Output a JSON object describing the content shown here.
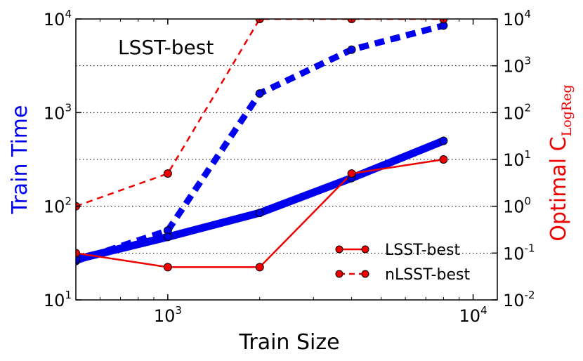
{
  "chart_data": {
    "type": "line",
    "annotation": "LSST-best",
    "xlabel": "Train Size",
    "ylabel_left": "Train Time",
    "ylabel_right_main": "Optimal C",
    "ylabel_right_sub": "LogReg",
    "xscale": "log",
    "xlim": [
      500,
      12000
    ],
    "ylim_left": [
      10,
      10000
    ],
    "ylim_right": [
      0.01,
      10000
    ],
    "x_ticks": [
      {
        "base": "10",
        "exp": "3",
        "value": 1000
      },
      {
        "base": "10",
        "exp": "4",
        "value": 10000
      }
    ],
    "y_left_ticks": [
      {
        "base": "10",
        "exp": "1",
        "value": 10
      },
      {
        "base": "10",
        "exp": "2",
        "value": 100
      },
      {
        "base": "10",
        "exp": "3",
        "value": 1000
      },
      {
        "base": "10",
        "exp": "4",
        "value": 10000
      }
    ],
    "y_right_ticks": [
      {
        "base": "10",
        "exp": "-2",
        "value": 0.01
      },
      {
        "base": "10",
        "exp": "-1",
        "value": 0.1
      },
      {
        "base": "10",
        "exp": "0",
        "value": 1
      },
      {
        "base": "10",
        "exp": "1",
        "value": 10
      },
      {
        "base": "10",
        "exp": "2",
        "value": 100
      },
      {
        "base": "10",
        "exp": "3",
        "value": 1000
      },
      {
        "base": "10",
        "exp": "4",
        "value": 10000
      }
    ],
    "train_time_series": [
      {
        "name": "LSST-best",
        "style": "solid",
        "color": "#0000ee",
        "x": [
          500,
          1000,
          2000,
          4000,
          8000
        ],
        "y": [
          27,
          47,
          85,
          200,
          500
        ]
      },
      {
        "name": "nLSST-best",
        "style": "dashed",
        "color": "#0000ee",
        "x": [
          500,
          1000,
          2000,
          4000,
          8000
        ],
        "y": [
          26,
          55,
          1600,
          4700,
          8500
        ]
      }
    ],
    "optimal_c_series": [
      {
        "name": "LSST-best",
        "style": "solid",
        "color": "#ee0000",
        "x": [
          500,
          1000,
          2000,
          4000,
          8000
        ],
        "y": [
          0.1,
          0.05,
          0.05,
          5,
          10
        ]
      },
      {
        "name": "nLSST-best",
        "style": "dashed",
        "color": "#ee0000",
        "x": [
          500,
          1000,
          2000,
          4000,
          8000
        ],
        "y": [
          1,
          5,
          10000,
          10000,
          10000
        ]
      }
    ],
    "legend": {
      "placement": "lower-right",
      "entries": [
        {
          "label": "LSST-best",
          "style": "solid"
        },
        {
          "label": "nLSST-best",
          "style": "dashed"
        }
      ]
    },
    "grid": "horizontal-dotted"
  }
}
